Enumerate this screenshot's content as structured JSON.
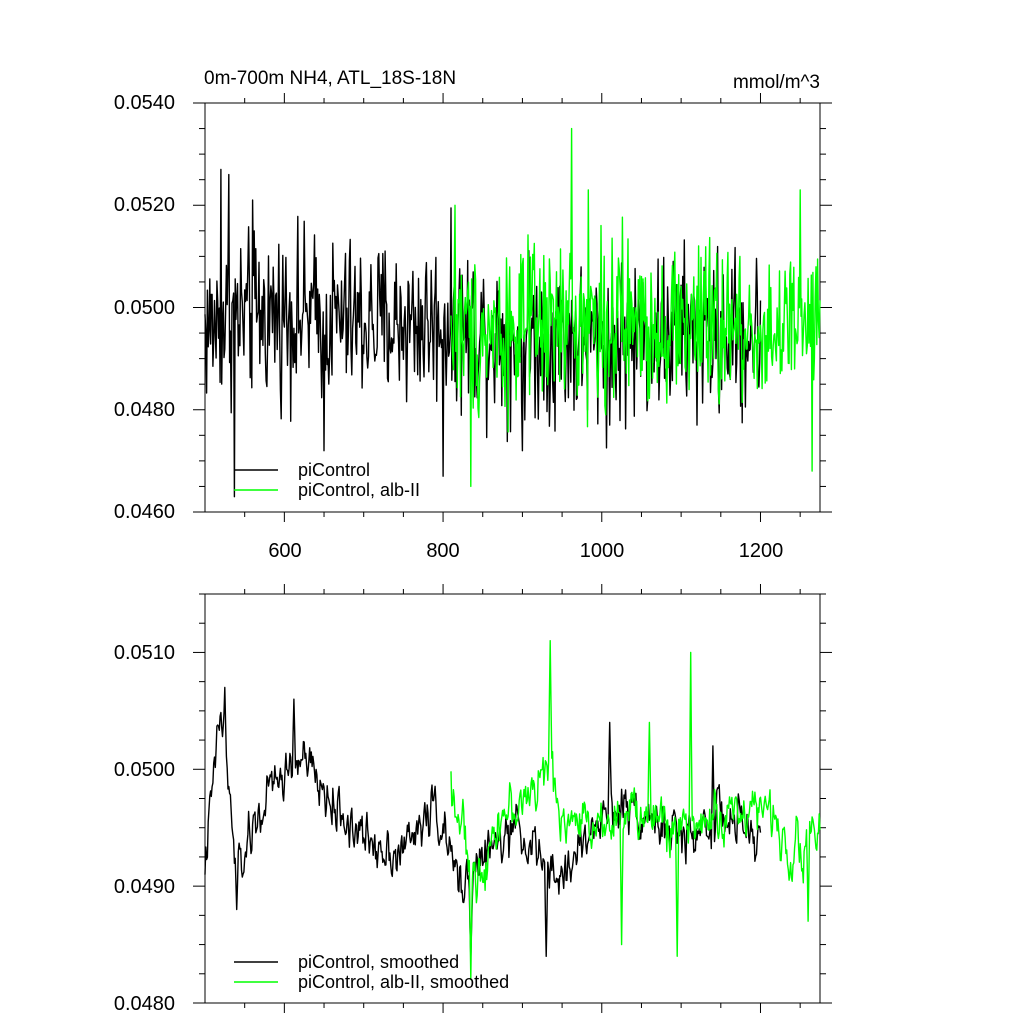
{
  "chart_data": [
    {
      "type": "line",
      "title": "0m-700m NH4, ATL_18S-18N",
      "units": "mmol/m^3",
      "xlim": [
        500,
        1275
      ],
      "ylim": [
        0.046,
        0.054
      ],
      "x_ticks": [
        "600",
        "800",
        "1000",
        "1200"
      ],
      "y_ticks": [
        "0.0460",
        "0.0480",
        "0.0500",
        "0.0520",
        "0.0540"
      ],
      "series": [
        {
          "name": "piControl",
          "color": "#000000",
          "x_range": [
            500,
            1200
          ],
          "anchors": [
            [
              500,
              0.0496
            ],
            [
              540,
              0.0498
            ],
            [
              600,
              0.0499
            ],
            [
              700,
              0.0497
            ],
            [
              800,
              0.0497
            ],
            [
              900,
              0.0494
            ],
            [
              1000,
              0.0493
            ],
            [
              1100,
              0.0495
            ],
            [
              1200,
              0.0494
            ]
          ],
          "noise": 0.0012,
          "spikes": [
            [
              520,
              0.0527
            ],
            [
              530,
              0.0526
            ],
            [
              537,
              0.0463
            ],
            [
              560,
              0.0521
            ],
            [
              650,
              0.0472
            ],
            [
              800,
              0.0467
            ],
            [
              900,
              0.0472
            ],
            [
              1010,
              0.0477
            ],
            [
              1120,
              0.0477
            ]
          ]
        },
        {
          "name": "piControl, alb-II",
          "color": "#00ff00",
          "x_range": [
            810,
            1275
          ],
          "anchors": [
            [
              810,
              0.0495
            ],
            [
              900,
              0.0496
            ],
            [
              1000,
              0.0497
            ],
            [
              1100,
              0.0497
            ],
            [
              1200,
              0.0495
            ],
            [
              1275,
              0.0496
            ]
          ],
          "noise": 0.0012,
          "spikes": [
            [
              815,
              0.052
            ],
            [
              835,
              0.0465
            ],
            [
              962,
              0.0535
            ],
            [
              983,
              0.0523
            ],
            [
              1250,
              0.0523
            ],
            [
              1265,
              0.0468
            ]
          ]
        }
      ],
      "legend": {
        "position": "bottom-left",
        "entries": [
          "piControl",
          "piControl, alb-II"
        ]
      }
    },
    {
      "type": "line",
      "xlim": [
        500,
        1275
      ],
      "ylim": [
        0.048,
        0.0515
      ],
      "y_ticks": [
        "0.0480",
        "0.0490",
        "0.0500",
        "0.0510"
      ],
      "series": [
        {
          "name": "piControl, smoothed",
          "color": "#000000",
          "x_range": [
            500,
            1200
          ],
          "anchors": [
            [
              500,
              0.0492
            ],
            [
              520,
              0.0505
            ],
            [
              540,
              0.0491
            ],
            [
              580,
              0.0498
            ],
            [
              620,
              0.0501
            ],
            [
              660,
              0.0497
            ],
            [
              700,
              0.0494
            ],
            [
              750,
              0.0493
            ],
            [
              790,
              0.0497
            ],
            [
              820,
              0.049
            ],
            [
              860,
              0.0493
            ],
            [
              900,
              0.0495
            ],
            [
              940,
              0.049
            ],
            [
              1000,
              0.0496
            ],
            [
              1040,
              0.0497
            ],
            [
              1100,
              0.0494
            ],
            [
              1150,
              0.0496
            ],
            [
              1200,
              0.0494
            ]
          ],
          "noise": 0.0003,
          "spikes": [
            [
              525,
              0.0507
            ],
            [
              540,
              0.0488
            ],
            [
              612,
              0.0506
            ],
            [
              835,
              0.0484
            ],
            [
              930,
              0.0484
            ],
            [
              1010,
              0.0504
            ],
            [
              1140,
              0.0502
            ]
          ]
        },
        {
          "name": "piControl, alb-II, smoothed",
          "color": "#00ff00",
          "x_range": [
            810,
            1275
          ],
          "anchors": [
            [
              810,
              0.0499
            ],
            [
              840,
              0.049
            ],
            [
              870,
              0.0496
            ],
            [
              900,
              0.0497
            ],
            [
              930,
              0.05
            ],
            [
              960,
              0.0495
            ],
            [
              1000,
              0.0496
            ],
            [
              1050,
              0.0496
            ],
            [
              1100,
              0.0495
            ],
            [
              1150,
              0.0496
            ],
            [
              1200,
              0.0497
            ],
            [
              1240,
              0.0493
            ],
            [
              1275,
              0.0495
            ]
          ],
          "noise": 0.0003,
          "spikes": [
            [
              835,
              0.0482
            ],
            [
              935,
              0.0511
            ],
            [
              1025,
              0.0485
            ],
            [
              1060,
              0.0504
            ],
            [
              1095,
              0.0484
            ],
            [
              1112,
              0.051
            ],
            [
              1260,
              0.0487
            ]
          ]
        }
      ],
      "legend": {
        "position": "bottom-left",
        "entries": [
          "piControl, smoothed",
          "piControl, alb-II, smoothed"
        ]
      }
    }
  ]
}
